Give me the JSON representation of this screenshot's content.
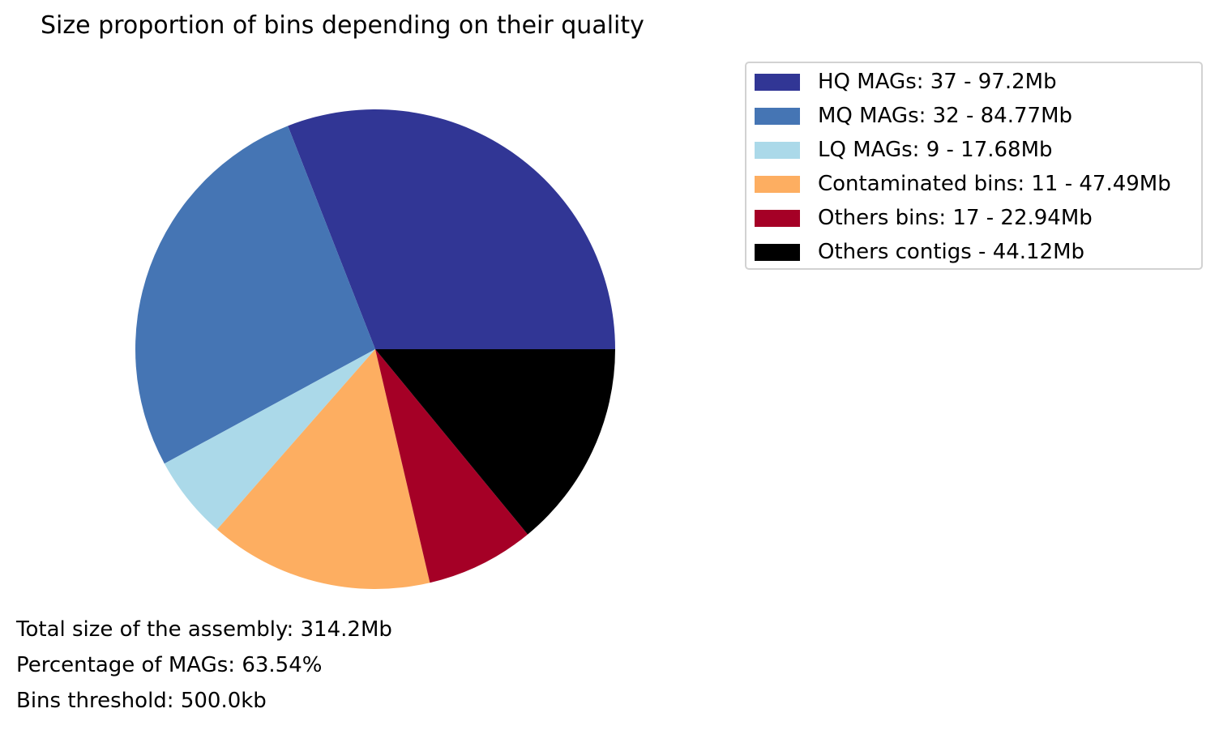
{
  "chart_data": {
    "type": "pie",
    "title": "Size proportion of bins depending on their quality",
    "start_angle_deg": 0,
    "direction": "counterclockwise",
    "slices": [
      {
        "label": "HQ MAGs: 37 - 97.2Mb",
        "value": 97.2,
        "color": "#313695"
      },
      {
        "label": "MQ MAGs: 32 - 84.77Mb",
        "value": 84.77,
        "color": "#4575b4"
      },
      {
        "label": "LQ MAGs: 9 - 17.68Mb",
        "value": 17.68,
        "color": "#abd9e9"
      },
      {
        "label": "Contaminated bins: 11 - 47.49Mb",
        "value": 47.49,
        "color": "#fdae61"
      },
      {
        "label": "Others bins: 17 - 22.94Mb",
        "value": 22.94,
        "color": "#a50026"
      },
      {
        "label": "Others contigs - 44.12Mb",
        "value": 44.12,
        "color": "#000000"
      }
    ],
    "legend_position": "top-right",
    "annotations": [
      "Total size of the assembly: 314.2Mb",
      "Percentage of MAGs: 63.54%",
      "Bins threshold: 500.0kb"
    ]
  }
}
